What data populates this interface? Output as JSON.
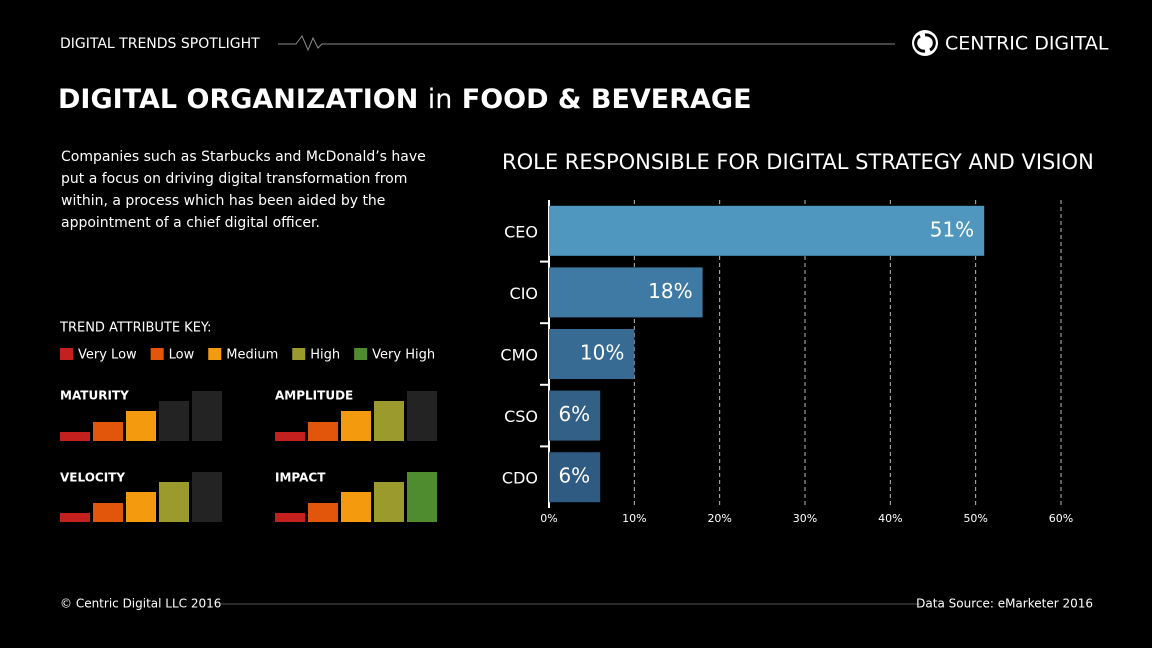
{
  "header": {
    "eyebrow": "DIGITAL TRENDS SPOTLIGHT",
    "brand": "CENTRIC DIGITAL",
    "title": [
      "DIGITAL ORGANIZATION",
      "in",
      "FOOD & BEVERAGE"
    ]
  },
  "intro": "Companies such as Starbucks and McDonald’s have put a focus on driving digital transformation from within, a process which has been aided by the appointment of a chief digital officer.",
  "key": {
    "title": "TREND ATTRIBUTE KEY:",
    "levels": [
      {
        "name": "Very Low",
        "color": "#c4201d"
      },
      {
        "name": "Low",
        "color": "#e2560c"
      },
      {
        "name": "Medium",
        "color": "#f39a0f"
      },
      {
        "name": "High",
        "color": "#9b9a2c"
      },
      {
        "name": "Very High",
        "color": "#4f8c2f"
      }
    ]
  },
  "attributes": [
    {
      "name": "MATURITY",
      "level": 3
    },
    {
      "name": "AMPLITUDE",
      "level": 4
    },
    {
      "name": "VELOCITY",
      "level": 4
    },
    {
      "name": "IMPACT",
      "level": 5
    }
  ],
  "chart_data": {
    "type": "barh",
    "title": "ROLE RESPONSIBLE FOR DIGITAL STRATEGY AND VISION",
    "categories": [
      "CEO",
      "CIO",
      "CMO",
      "CSO",
      "CDO"
    ],
    "values": [
      51,
      18,
      10,
      6,
      6
    ],
    "value_labels": [
      "51%",
      "18%",
      "10%",
      "6%",
      "6%"
    ],
    "colors": [
      "#4f97bf",
      "#3f7aa4",
      "#376b93",
      "#326087",
      "#2f5a81"
    ],
    "xlim": [
      0,
      60
    ],
    "xticks": [
      {
        "value": 0,
        "label": "0%"
      },
      {
        "value": 10,
        "label": "10%"
      },
      {
        "value": 20,
        "label": "20%"
      },
      {
        "value": 30,
        "label": "30%"
      },
      {
        "value": 40,
        "label": "40%"
      },
      {
        "value": 50,
        "label": "50%"
      },
      {
        "value": 60,
        "label": "60%"
      }
    ],
    "grid": true
  },
  "footer": {
    "copyright": "© Centric Digital LLC 2016",
    "source": "Data Source: eMarketer 2016"
  }
}
